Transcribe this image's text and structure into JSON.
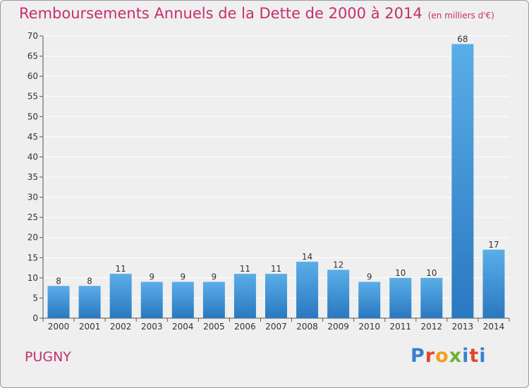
{
  "header": {
    "title": "Remboursements Annuels de la Dette de 2000 à 2014",
    "unit": "(en milliers d'€)"
  },
  "footer": {
    "commune": "PUGNY",
    "logo": "Proxiti"
  },
  "colors": {
    "title": "#c4306e",
    "bar_top": "#5aaee8",
    "bar_bottom": "#2a78c0",
    "grid": "#ffffff",
    "background": "#efefef"
  },
  "chart_data": {
    "type": "bar",
    "title": "Remboursements Annuels de la Dette de 2000 à 2014",
    "categories": [
      "2000",
      "2001",
      "2002",
      "2003",
      "2004",
      "2005",
      "2006",
      "2007",
      "2008",
      "2009",
      "2010",
      "2011",
      "2012",
      "2013",
      "2014"
    ],
    "values": [
      8,
      8,
      11,
      9,
      9,
      9,
      11,
      11,
      14,
      12,
      9,
      10,
      10,
      68,
      17
    ],
    "ylim": [
      0,
      70
    ],
    "yticks": [
      0,
      5,
      10,
      15,
      20,
      25,
      30,
      35,
      40,
      45,
      50,
      55,
      60,
      65,
      70
    ],
    "grid": true,
    "legend": "none"
  }
}
